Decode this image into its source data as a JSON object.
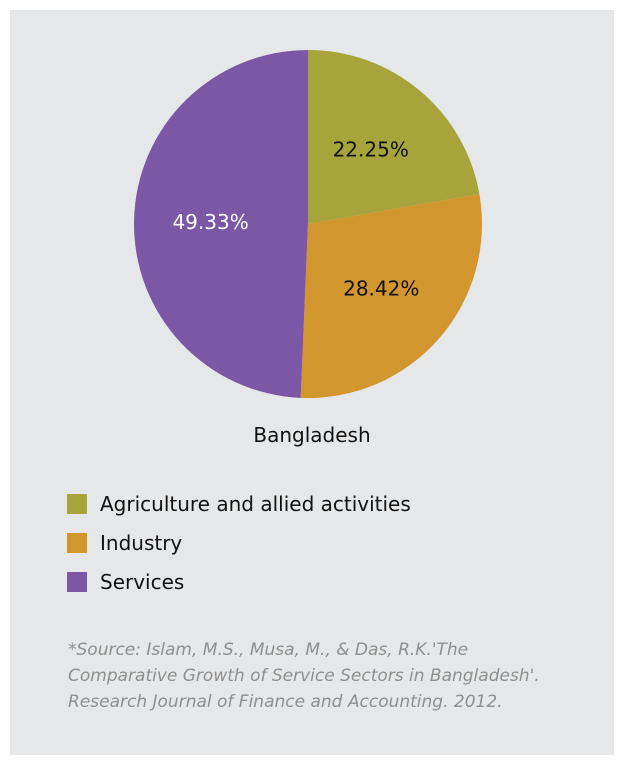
{
  "chart_data": {
    "type": "pie",
    "title": "Bangladesh",
    "categories": [
      "Agriculture and allied activities",
      "Industry",
      "Services"
    ],
    "values": [
      22.25,
      28.42,
      49.33
    ],
    "labels": [
      "22.25%",
      "28.42%",
      "49.33%"
    ],
    "colors": [
      "#a6a43a",
      "#d2962f",
      "#7b57a6"
    ],
    "label_colors": [
      "#111111",
      "#111111",
      "#ffffff"
    ],
    "legend_position": "bottom-left"
  },
  "legend": {
    "items": [
      {
        "label": "Agriculture and allied activities",
        "color": "#a6a43a"
      },
      {
        "label": "Industry",
        "color": "#d2962f"
      },
      {
        "label": "Services",
        "color": "#7b57a6"
      }
    ]
  },
  "caption": "Bangladesh",
  "source": "*Source: Islam, M.S., Musa, M., & Das, R.K.'The Comparative Growth of Service Sectors in Bangladesh'. Research Journal of Finance and Accounting. 2012."
}
